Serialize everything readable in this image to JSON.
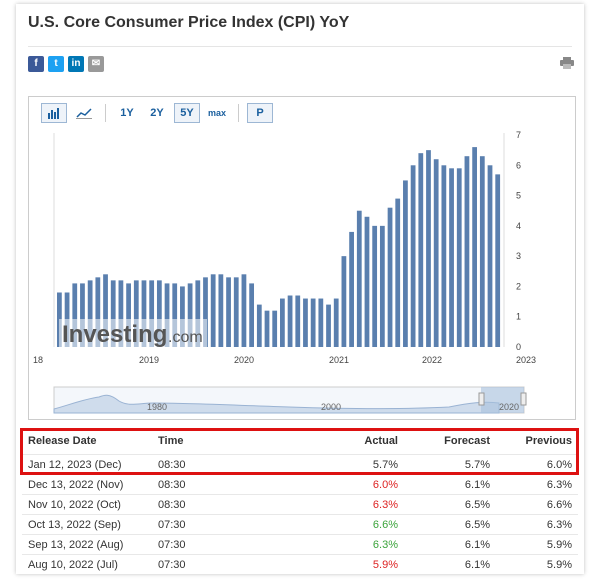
{
  "title": "U.S. Core Consumer Price Index (CPI) YoY",
  "share": {
    "facebook": "f",
    "twitter": "t",
    "linkedin": "in",
    "email": "✉"
  },
  "toolbar": {
    "range_1y": "1Y",
    "range_2y": "2Y",
    "range_5y": "5Y",
    "range_max": "max",
    "p_label": "P"
  },
  "chart_data": {
    "type": "bar",
    "x_ticks": [
      "18",
      "2019",
      "2020",
      "2021",
      "2022",
      "2023"
    ],
    "y_ticks": [
      "0",
      "1",
      "2",
      "3",
      "4",
      "5",
      "6",
      "7"
    ],
    "ylim": [
      0,
      7
    ],
    "values": [
      1.8,
      1.8,
      2.1,
      2.1,
      2.2,
      2.3,
      2.4,
      2.2,
      2.2,
      2.1,
      2.2,
      2.2,
      2.2,
      2.2,
      2.1,
      2.1,
      2.0,
      2.1,
      2.2,
      2.3,
      2.4,
      2.4,
      2.3,
      2.3,
      2.4,
      2.1,
      1.4,
      1.2,
      1.2,
      1.6,
      1.7,
      1.7,
      1.6,
      1.6,
      1.6,
      1.4,
      1.6,
      3.0,
      3.8,
      4.5,
      4.3,
      4.0,
      4.0,
      4.6,
      4.9,
      5.5,
      6.0,
      6.4,
      6.5,
      6.2,
      6.0,
      5.9,
      5.9,
      6.3,
      6.6,
      6.3,
      6.0,
      5.7
    ],
    "watermark": "Investing",
    "watermark_suffix": ".com",
    "navigator_ticks": [
      "1980",
      "2000",
      "2020"
    ]
  },
  "table": {
    "headers": [
      "Release Date",
      "Time",
      "Actual",
      "Forecast",
      "Previous"
    ],
    "rows": [
      {
        "date": "Jan 12, 2023 (Dec)",
        "time": "08:30",
        "actual": "5.7%",
        "forecast": "5.7%",
        "previous": "6.0%",
        "color": ""
      },
      {
        "date": "Dec 13, 2022 (Nov)",
        "time": "08:30",
        "actual": "6.0%",
        "forecast": "6.1%",
        "previous": "6.3%",
        "color": "red"
      },
      {
        "date": "Nov 10, 2022 (Oct)",
        "time": "08:30",
        "actual": "6.3%",
        "forecast": "6.5%",
        "previous": "6.6%",
        "color": "red"
      },
      {
        "date": "Oct 13, 2022 (Sep)",
        "time": "07:30",
        "actual": "6.6%",
        "forecast": "6.5%",
        "previous": "6.3%",
        "color": "green"
      },
      {
        "date": "Sep 13, 2022 (Aug)",
        "time": "07:30",
        "actual": "6.3%",
        "forecast": "6.1%",
        "previous": "5.9%",
        "color": "green"
      },
      {
        "date": "Aug 10, 2022 (Jul)",
        "time": "07:30",
        "actual": "5.9%",
        "forecast": "6.1%",
        "previous": "5.9%",
        "color": "red"
      }
    ]
  }
}
